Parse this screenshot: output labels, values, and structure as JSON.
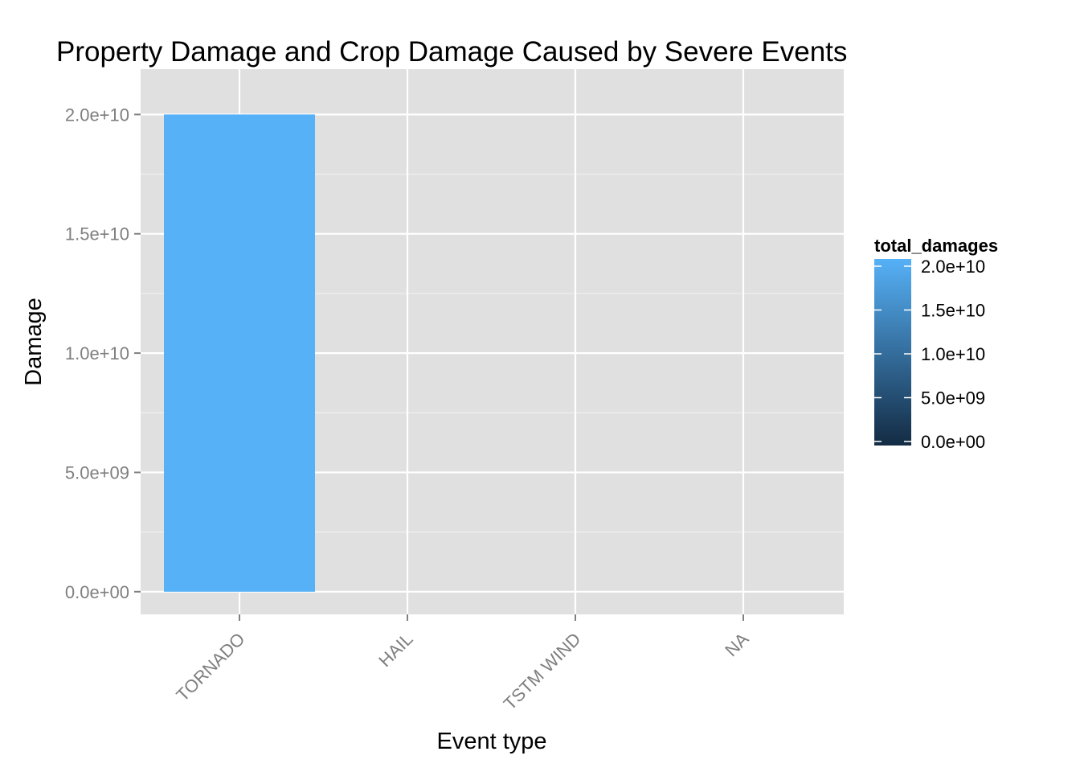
{
  "chart_data": {
    "type": "bar",
    "title": "Property Damage and Crop Damage Caused by Severe Events",
    "xlabel": "Event type",
    "ylabel": "Damage",
    "categories": [
      "TORNADO",
      "HAIL",
      "TSTM WIND",
      "NA"
    ],
    "values": [
      20000000000,
      0,
      0,
      0
    ],
    "ylim": [
      -950000000,
      21900000000
    ],
    "yticks": [
      0,
      5000000000,
      10000000000,
      15000000000,
      20000000000
    ],
    "ytick_labels": [
      "0.0e+00",
      "5.0e+09",
      "1.0e+10",
      "1.5e+10",
      "2.0e+10"
    ],
    "grid": true,
    "legend": {
      "title": "total_damages",
      "placement": "right",
      "type": "colorbar",
      "range": [
        0,
        20000000000
      ],
      "ticks": [
        0,
        5000000000,
        10000000000,
        15000000000,
        20000000000
      ],
      "tick_labels": [
        "0.0e+00",
        "5.0e+09",
        "1.0e+10",
        "1.5e+10",
        "2.0e+10"
      ],
      "color_low": "#132b43",
      "color_high": "#56b1f7"
    },
    "colors": {
      "panel_background": "#e0e0e0",
      "grid_major": "#ffffff",
      "grid_minor": "#f0f0f0",
      "tick_label": "#7f7f7f",
      "tick_mark": "#7f7f7f"
    }
  }
}
